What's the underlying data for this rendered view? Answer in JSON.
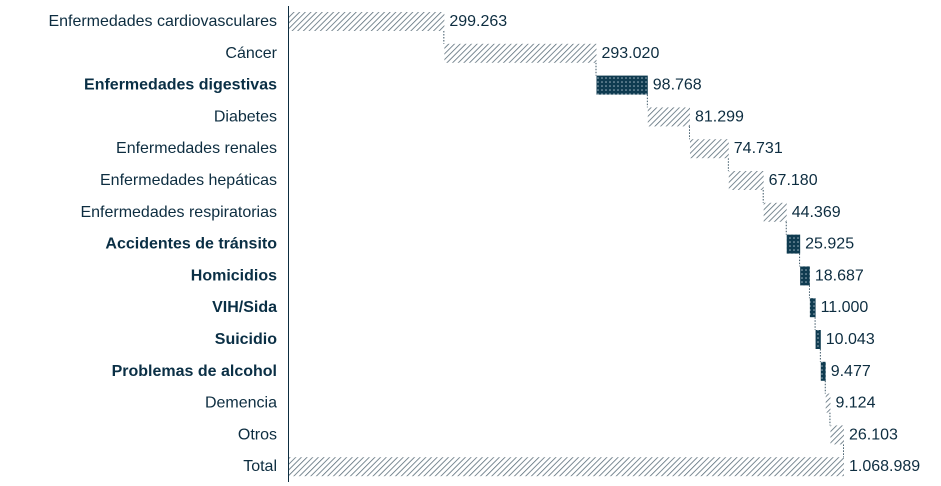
{
  "chart_data": {
    "type": "bar",
    "subtype": "waterfall",
    "orientation": "horizontal",
    "title": "",
    "xlabel": "",
    "ylabel": "",
    "grid": false,
    "legend": "none",
    "xlim": [
      0,
      1068989
    ],
    "colors": {
      "hatched": "#5a6d79",
      "solid": "#0f3b50",
      "text": "#0d2d40",
      "axis": "#0d2d40"
    },
    "categories": [
      "Enfermedades cardiovasculares",
      "Cáncer",
      "Enfermedades digestivas",
      "Diabetes",
      "Enfermedades renales",
      "Enfermedades hepáticas",
      "Enfermedades respiratorias",
      "Accidentes de tránsito",
      "Homicidios",
      "VIH/Sida",
      "Suicidio",
      "Problemas de alcohol",
      "Demencia",
      "Otros",
      "Total"
    ],
    "values": [
      299263,
      293020,
      98768,
      81299,
      74731,
      67180,
      44369,
      25925,
      18687,
      11000,
      10043,
      9477,
      9124,
      26103,
      1068989
    ],
    "value_labels": [
      "299.263",
      "293.020",
      "98.768",
      "81.299",
      "74.731",
      "67.180",
      "44.369",
      "25.925",
      "18.687",
      "11.000",
      "10.043",
      "9.477",
      "9.124",
      "26.103",
      "1.068.989"
    ],
    "highlighted": [
      false,
      false,
      true,
      false,
      false,
      false,
      false,
      true,
      true,
      true,
      true,
      true,
      false,
      false,
      false
    ],
    "is_total": [
      false,
      false,
      false,
      false,
      false,
      false,
      false,
      false,
      false,
      false,
      false,
      false,
      false,
      false,
      true
    ]
  }
}
